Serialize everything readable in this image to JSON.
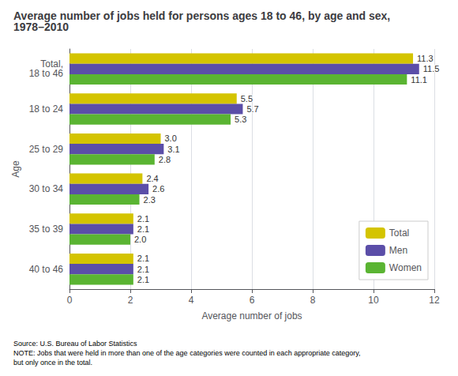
{
  "chart_data": {
    "type": "bar",
    "orientation": "horizontal",
    "title": "Average number of jobs held for persons ages 18 to 46, by age and sex, 1978–2010",
    "categories": [
      "Total,\n18 to 46",
      "18 to 24",
      "25 to 29",
      "30 to 34",
      "35 to 39",
      "40 to 46"
    ],
    "series": [
      {
        "name": "Total",
        "color": "#d4c400",
        "values": [
          11.3,
          5.5,
          3.0,
          2.4,
          2.1,
          2.1
        ],
        "value_labels": [
          "11.3",
          "5.5",
          "3.0",
          "2.4",
          "2.1",
          "2.1"
        ]
      },
      {
        "name": "Men",
        "color": "#5b4ea8",
        "values": [
          11.5,
          5.7,
          3.1,
          2.6,
          2.1,
          2.1
        ],
        "value_labels": [
          "11.5",
          "5.7",
          "3.1",
          "2.6",
          "2.1",
          "2.1"
        ]
      },
      {
        "name": "Women",
        "color": "#5ab432",
        "values": [
          11.1,
          5.3,
          2.8,
          2.3,
          2.0,
          2.1
        ],
        "value_labels": [
          "11.1",
          "5.3",
          "2.8",
          "2.3",
          "2.0",
          "2.1"
        ]
      }
    ],
    "xlabel": "Average number of jobs",
    "ylabel": "Age",
    "xlim": [
      0,
      12
    ],
    "xticks": [
      0,
      2,
      4,
      6,
      8,
      10,
      12
    ],
    "grid": true,
    "legend": "lower right",
    "data_labels": true,
    "source": "Source: U.S. Bureau of Labor Statistics\nNOTE: Jobs that were held in more than one of the age categories were counted in each appropriate category,\nbut only once in the total."
  }
}
